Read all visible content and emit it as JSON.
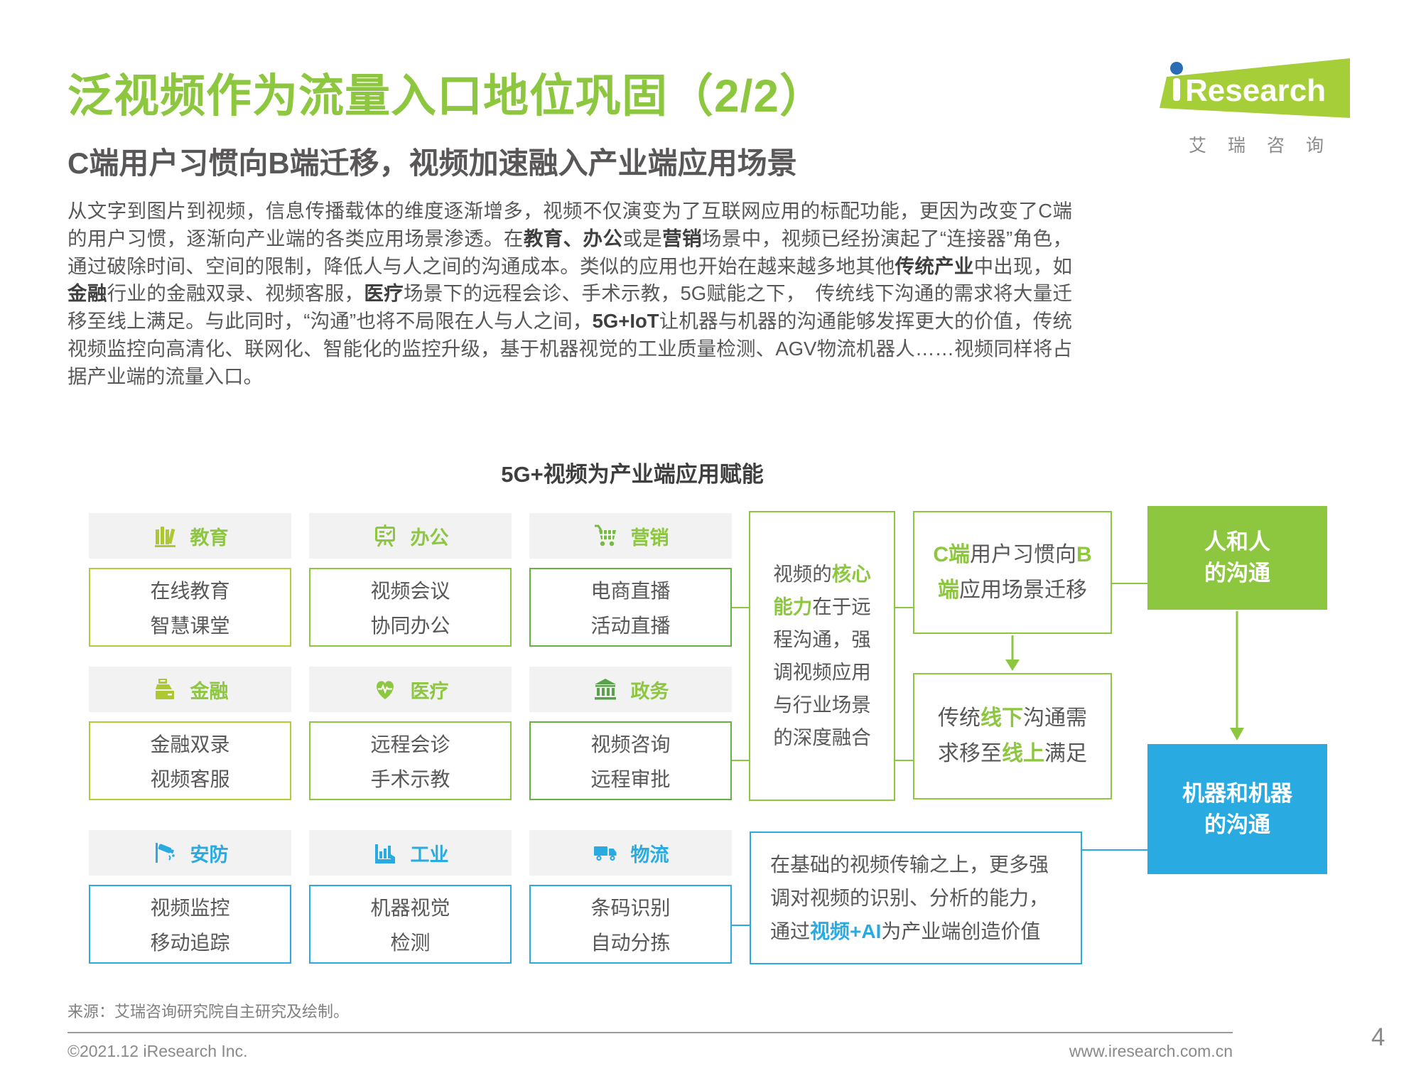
{
  "colors": {
    "green": "#8dc63f",
    "blue": "#29abe2",
    "dark_green": "#67b23e",
    "yellow_green": "#b4cc35",
    "logo_green": "#a6ce39",
    "logo_blue": "#2a6db5",
    "text_gray": "#595757",
    "head_bg": "#f2f2f2"
  },
  "header": {
    "title": "泛视频作为流量入口地位巩固（2/2）",
    "subtitle": "C端用户习惯向B端迁移，视频加速融入产业端应用场景",
    "logo": {
      "brand": "Research",
      "brand_i": "i",
      "cn": "艾瑞咨询"
    }
  },
  "intro": {
    "segments": [
      {
        "t": "从文字到图片到视频，信息传播载体的维度逐渐增多，视频不仅演变为了互联网应用的标配功能，更因为改变了C端的用户习惯，逐渐向产业端的各类应用场景渗透。在"
      },
      {
        "t": "教育、办公",
        "b": 1
      },
      {
        "t": "或是"
      },
      {
        "t": "营销",
        "b": 1
      },
      {
        "t": "场景中，视频已经扮演起了“连接器”角色，通过破除时间、空间的限制，降低人与人之间的沟通成本。类似的应用也开始在越来越多地其他"
      },
      {
        "t": "传统产业",
        "b": 1
      },
      {
        "t": "中出现，如"
      },
      {
        "t": "金融",
        "b": 1
      },
      {
        "t": "行业的金融双录、视频客服，"
      },
      {
        "t": "医疗",
        "b": 1
      },
      {
        "t": "场景下的远程会诊、手术示教，5G赋能之下，　传统线下沟通的需求将大量迁移至线上满足。与此同时，“沟通”也将不局限在人与人之间，"
      },
      {
        "t": "5G+IoT",
        "b": 1
      },
      {
        "t": "让机器与机器的沟通能够发挥更大的价值，传统视频监控向高清化、联网化、智能化的监控升级，基于机器视觉的工业质量检测、AGV物流机器人……视频同样将占据产业端的流量入口。"
      }
    ]
  },
  "diagram": {
    "title": "5G+视频为产业端应用赋能",
    "cards": [
      {
        "label": "教育",
        "icon": "books-icon",
        "icon_color": "#aec832",
        "label_color": "#8dc63f",
        "border_color": "#b4cc35",
        "lines": [
          "在线教育",
          "智慧课堂"
        ]
      },
      {
        "label": "办公",
        "icon": "presentation-board-icon",
        "icon_color": "#8dc63f",
        "label_color": "#8dc63f",
        "border_color": "#8dc63f",
        "lines": [
          "视频会议",
          "协同办公"
        ]
      },
      {
        "label": "营销",
        "icon": "shopping-cart-icon",
        "icon_color": "#74ba43",
        "label_color": "#8dc63f",
        "border_color": "#67b23e",
        "lines": [
          "电商直播",
          "活动直播"
        ]
      },
      {
        "label": "金融",
        "icon": "cash-register-icon",
        "icon_color": "#aec832",
        "label_color": "#8dc63f",
        "border_color": "#b4cc35",
        "lines": [
          "金融双录",
          "视频客服"
        ]
      },
      {
        "label": "医疗",
        "icon": "heart-pulse-icon",
        "icon_color": "#8dc63f",
        "label_color": "#8dc63f",
        "border_color": "#8dc63f",
        "lines": [
          "远程会诊",
          "手术示教"
        ]
      },
      {
        "label": "政务",
        "icon": "government-building-icon",
        "icon_color": "#5aa14b",
        "label_color": "#8dc63f",
        "border_color": "#67b23e",
        "lines": [
          "视频咨询",
          "远程审批"
        ]
      },
      {
        "label": "安防",
        "icon": "cctv-camera-icon",
        "icon_color": "#29abe2",
        "label_color": "#29abe2",
        "border_color": "#29abe2",
        "lines": [
          "视频监控",
          "移动追踪"
        ]
      },
      {
        "label": "工业",
        "icon": "factory-icon",
        "icon_color": "#29abe2",
        "label_color": "#29abe2",
        "border_color": "#29abe2",
        "lines": [
          "机器视觉",
          "检测"
        ]
      },
      {
        "label": "物流",
        "icon": "truck-icon",
        "icon_color": "#29abe2",
        "label_color": "#29abe2",
        "border_color": "#29abe2",
        "lines": [
          "条码识别",
          "自动分拣"
        ]
      }
    ],
    "core_box": [
      {
        "t": "视频的"
      },
      {
        "t": "核心能力",
        "b": 1,
        "c": "green"
      },
      {
        "t": "在于远程沟通，强调视频应用与行业场景的深度融合"
      }
    ],
    "c2b_box": [
      {
        "t": "C端",
        "b": 1,
        "c": "green"
      },
      {
        "t": "用户习惯向"
      },
      {
        "t": "B",
        "b": 1,
        "c": "green"
      },
      {
        "t": "端",
        "b": 1,
        "c": "green"
      },
      {
        "t": "应用场景迁移"
      }
    ],
    "offline_box": [
      {
        "t": "传统"
      },
      {
        "t": "线下",
        "b": 1,
        "c": "green"
      },
      {
        "t": "沟通需求移至"
      },
      {
        "t": "线上",
        "b": 1,
        "c": "green"
      },
      {
        "t": "满足"
      }
    ],
    "ai_box": [
      {
        "t": "在基础的视频传输之上，更多强调对视频的识别、分析的能力，通过"
      },
      {
        "t": "视频+AI",
        "b": 1,
        "c": "blue"
      },
      {
        "t": "为产业端创造价值"
      }
    ],
    "human_box": {
      "line1": "人和人",
      "line2": "的沟通"
    },
    "machine_box": {
      "line1": "机器和机器",
      "line2": "的沟通"
    }
  },
  "footer": {
    "source": "来源：艾瑞咨询研究院自主研究及绘制。",
    "copyright": "©2021.12 iResearch Inc.",
    "site": "www.iresearch.com.cn",
    "page": "4"
  }
}
